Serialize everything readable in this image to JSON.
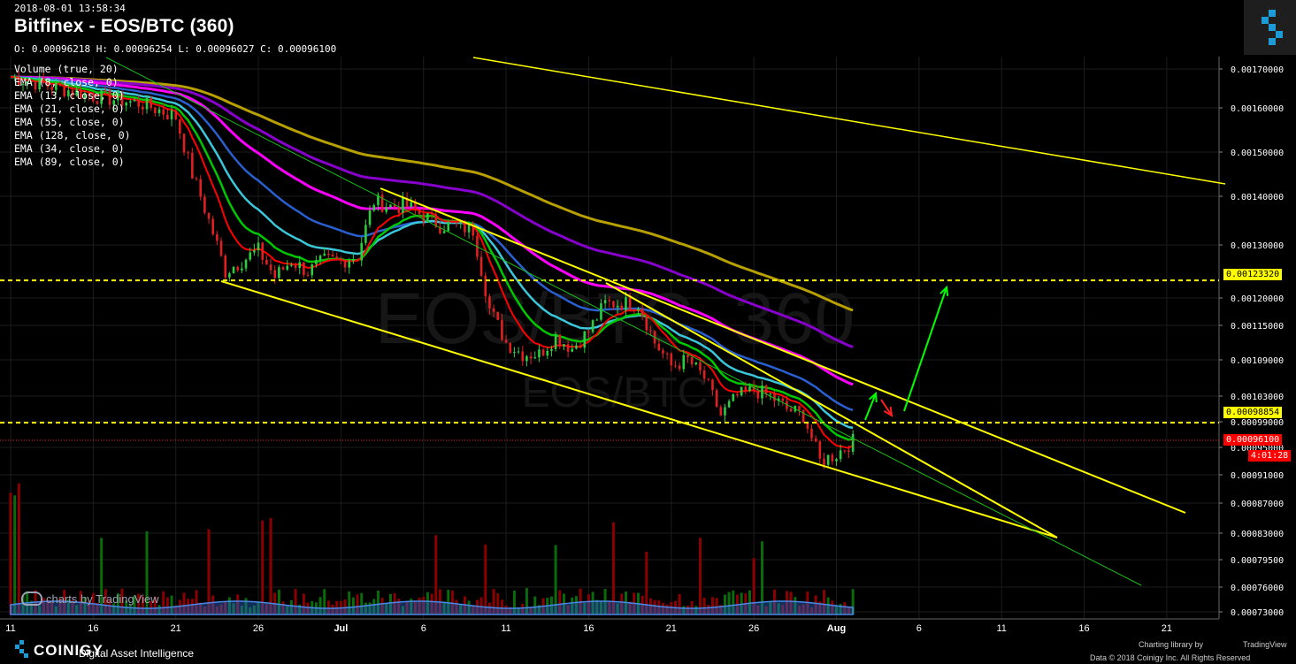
{
  "header": {
    "timestamp": "2018-08-01 13:58:34",
    "title": "Bitfinex - EOS/BTC (360)",
    "ohlc": "O: 0.00096218 H: 0.00096254 L: 0.00096027 C: 0.00096100"
  },
  "legend": [
    "Volume (true, 20)",
    "EMA (8, close, 0)",
    "EMA (13, close, 0)",
    "EMA (21, close, 0)",
    "EMA (55, close, 0)",
    "EMA (128, close, 0)",
    "EMA (34, close, 0)",
    "EMA (89, close, 0)"
  ],
  "watermark": {
    "line1": "EOS/BTC, 360",
    "line2": "EOS/BTC"
  },
  "tv_watermark": "charts by TradingView",
  "price_labels": {
    "current": "0.00096100",
    "timer": "4:01:28",
    "level_high": "0.00123320",
    "level_low": "0.00098854"
  },
  "footer": {
    "brand": "COINIGY",
    "tagline": "Digital Asset Intelligence",
    "charting": "Charting library by",
    "tv": "TradingView",
    "copyright": "Data © 2018 Coinigy Inc. All Rights Reserved"
  },
  "colors": {
    "bull": "#26a69a",
    "bear": "#ef5350",
    "ema8": "#ff0000",
    "ema13": "#00c800",
    "ema21": "#3bc6d9",
    "ema34": "#2a5fcf",
    "ema55": "#ff00ff",
    "ema89": "#8800cc",
    "ema128": "#b8a000",
    "trend": "#ffff00",
    "thin": "#18c018",
    "arrow_up": "#00ff00",
    "arrow_down": "#ff2020"
  },
  "chart_data": {
    "type": "candlestick",
    "pair": "EOS/BTC",
    "exchange": "Bitfinex",
    "interval_minutes": 360,
    "y_ticks": [
      "0.00170000",
      "0.00160000",
      "0.00150000",
      "0.00140000",
      "0.00130000",
      "0.00120000",
      "0.00115000",
      "0.00109000",
      "0.00103000",
      "0.00099000",
      "0.00095000",
      "0.00091000",
      "0.00087000",
      "0.00083000",
      "0.00079500",
      "0.00076000",
      "0.00073000"
    ],
    "x_ticks": [
      "11",
      "16",
      "21",
      "26",
      "Jul",
      "6",
      "11",
      "16",
      "21",
      "26",
      "Aug",
      "6",
      "11",
      "16",
      "21"
    ],
    "price_path": [
      [
        "06-11",
        0.00168
      ],
      [
        "06-13",
        0.00166
      ],
      [
        "06-16",
        0.00163
      ],
      [
        "06-19",
        0.00161
      ],
      [
        "06-21",
        0.00158
      ],
      [
        "06-22",
        0.00145
      ],
      [
        "06-24",
        0.00125
      ],
      [
        "06-25",
        0.00127
      ],
      [
        "06-26",
        0.00129
      ],
      [
        "06-27",
        0.00124
      ],
      [
        "06-28",
        0.00127
      ],
      [
        "06-29",
        0.00125
      ],
      [
        "06-30",
        0.00127
      ],
      [
        "07-01",
        0.00127
      ],
      [
        "07-02",
        0.00128
      ],
      [
        "07-03",
        0.00139
      ],
      [
        "07-04",
        0.00138
      ],
      [
        "07-05",
        0.00138
      ],
      [
        "07-06",
        0.00136
      ],
      [
        "07-07",
        0.00134
      ],
      [
        "07-08",
        0.00134
      ],
      [
        "07-09",
        0.00133
      ],
      [
        "07-10",
        0.00118
      ],
      [
        "07-11",
        0.00112
      ],
      [
        "07-12",
        0.0011
      ],
      [
        "07-13",
        0.0011
      ],
      [
        "07-14",
        0.00113
      ],
      [
        "07-15",
        0.00111
      ],
      [
        "07-16",
        0.00114
      ],
      [
        "07-17",
        0.00119
      ],
      [
        "07-18",
        0.00119
      ],
      [
        "07-19",
        0.00119
      ],
      [
        "07-20",
        0.00112
      ],
      [
        "07-21",
        0.00108
      ],
      [
        "07-22",
        0.00109
      ],
      [
        "07-23",
        0.00106
      ],
      [
        "07-24",
        0.001
      ],
      [
        "07-25",
        0.00103
      ],
      [
        "07-26",
        0.00104
      ],
      [
        "07-27",
        0.00103
      ],
      [
        "07-28",
        0.00101
      ],
      [
        "07-29",
        0.001
      ],
      [
        "07-30",
        0.00093
      ],
      [
        "07-31",
        0.00094
      ],
      [
        "08-01",
        0.00096
      ]
    ],
    "horizontal_levels": [
      0.0012332,
      0.00098854,
      0.000961
    ],
    "volume_note": "volume histogram at bottom; largest spike at start of range"
  }
}
